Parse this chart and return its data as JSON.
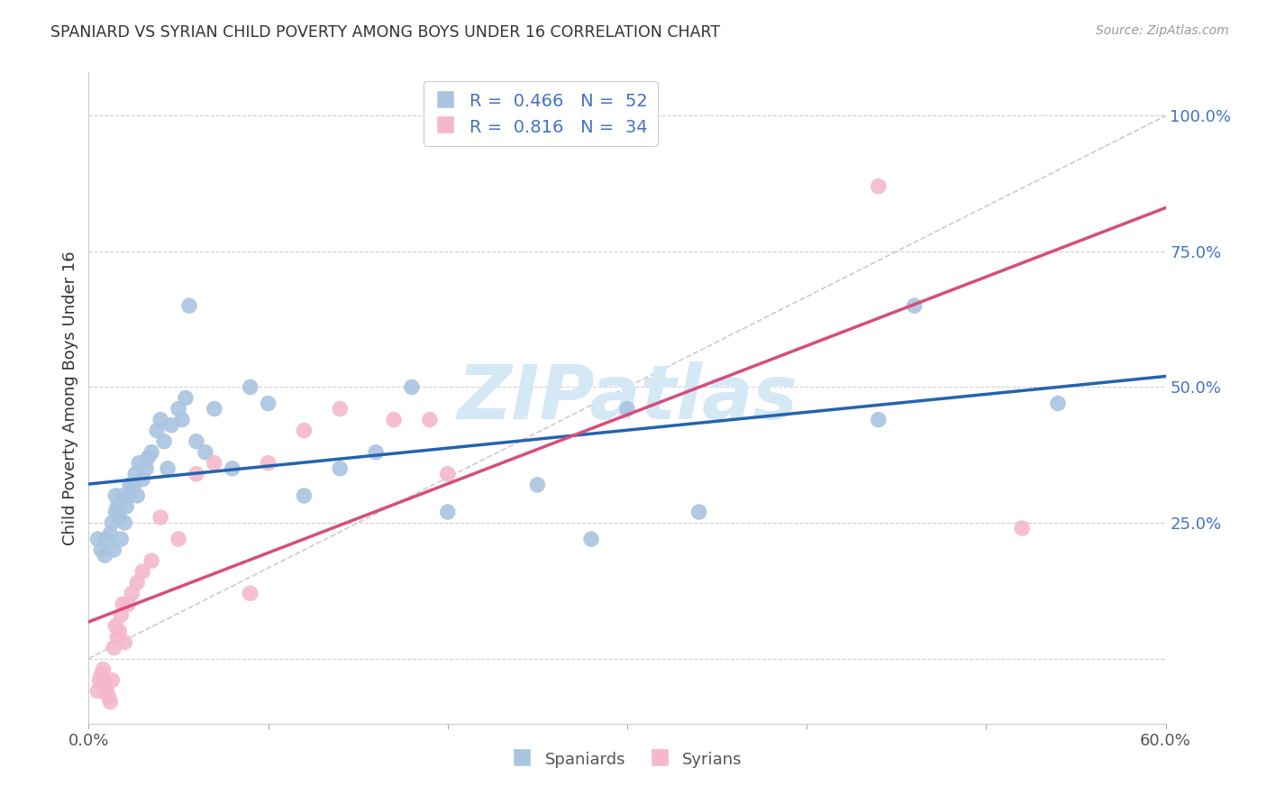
{
  "title": "SPANIARD VS SYRIAN CHILD POVERTY AMONG BOYS UNDER 16 CORRELATION CHART",
  "source": "Source: ZipAtlas.com",
  "ylabel": "Child Poverty Among Boys Under 16",
  "xlim": [
    0.0,
    0.6
  ],
  "ylim": [
    -0.12,
    1.08
  ],
  "legend_R_spaniard": "0.466",
  "legend_N_spaniard": "52",
  "legend_R_syrian": "0.816",
  "legend_N_syrian": "34",
  "blue_color": "#aac4e0",
  "pink_color": "#f5b8cb",
  "blue_line_color": "#2563ae",
  "pink_line_color": "#d64d7a",
  "ref_line_color": "#c0c0c0",
  "grid_color": "#d0d0d0",
  "watermark": "ZIPatlas",
  "watermark_color": "#d5e8f5",
  "spaniard_x": [
    0.005,
    0.007,
    0.009,
    0.01,
    0.012,
    0.013,
    0.014,
    0.015,
    0.015,
    0.016,
    0.017,
    0.018,
    0.019,
    0.02,
    0.021,
    0.022,
    0.023,
    0.025,
    0.026,
    0.027,
    0.028,
    0.03,
    0.032,
    0.033,
    0.035,
    0.038,
    0.04,
    0.042,
    0.044,
    0.046,
    0.05,
    0.052,
    0.054,
    0.056,
    0.06,
    0.065,
    0.07,
    0.08,
    0.09,
    0.1,
    0.12,
    0.14,
    0.16,
    0.18,
    0.2,
    0.25,
    0.28,
    0.3,
    0.34,
    0.44,
    0.46,
    0.54
  ],
  "spaniard_y": [
    0.22,
    0.2,
    0.19,
    0.22,
    0.23,
    0.25,
    0.2,
    0.27,
    0.3,
    0.28,
    0.26,
    0.22,
    0.3,
    0.25,
    0.28,
    0.3,
    0.32,
    0.32,
    0.34,
    0.3,
    0.36,
    0.33,
    0.35,
    0.37,
    0.38,
    0.42,
    0.44,
    0.4,
    0.35,
    0.43,
    0.46,
    0.44,
    0.48,
    0.65,
    0.4,
    0.38,
    0.46,
    0.35,
    0.5,
    0.47,
    0.3,
    0.35,
    0.38,
    0.5,
    0.27,
    0.32,
    0.22,
    0.46,
    0.27,
    0.44,
    0.65,
    0.47
  ],
  "syrian_x": [
    0.005,
    0.006,
    0.007,
    0.008,
    0.009,
    0.01,
    0.011,
    0.012,
    0.013,
    0.014,
    0.015,
    0.016,
    0.017,
    0.018,
    0.019,
    0.02,
    0.022,
    0.024,
    0.027,
    0.03,
    0.035,
    0.04,
    0.05,
    0.06,
    0.07,
    0.09,
    0.1,
    0.12,
    0.14,
    0.17,
    0.19,
    0.2,
    0.44,
    0.52
  ],
  "syrian_y": [
    -0.06,
    -0.04,
    -0.03,
    -0.02,
    -0.04,
    -0.06,
    -0.07,
    -0.08,
    -0.04,
    0.02,
    0.06,
    0.04,
    0.05,
    0.08,
    0.1,
    0.03,
    0.1,
    0.12,
    0.14,
    0.16,
    0.18,
    0.26,
    0.22,
    0.34,
    0.36,
    0.12,
    0.36,
    0.42,
    0.46,
    0.44,
    0.44,
    0.34,
    0.87,
    0.24
  ]
}
